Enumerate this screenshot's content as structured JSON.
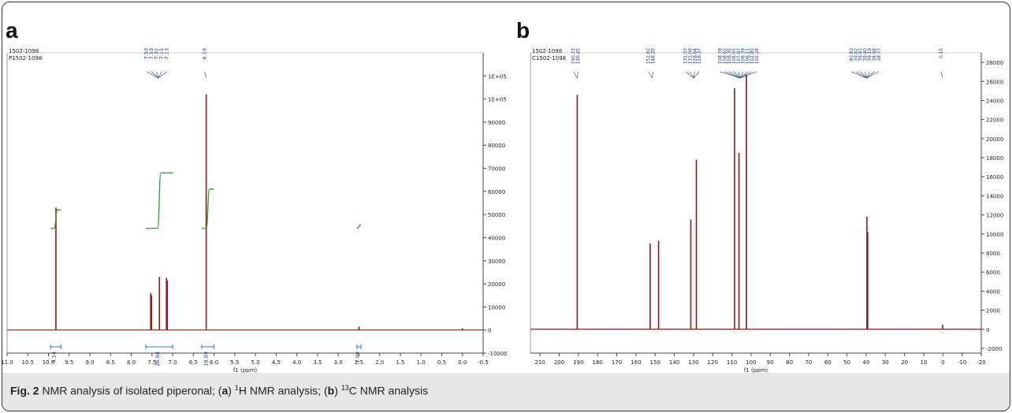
{
  "panels": {
    "a_letter": "a",
    "b_letter": "b"
  },
  "caption": {
    "fig_label": "Fig. 2",
    "part1": " NMR analysis of isolated piperonal; (",
    "a": "a",
    "part2": ") ",
    "sup_a": "1",
    "part3": "H NMR analysis; (",
    "b": "b",
    "part4": ") ",
    "sup_b": "13",
    "part5": "C NMR analysis"
  },
  "chart_data": [
    {
      "type": "line",
      "id": "a",
      "header_lines": [
        "1502-1098",
        "P1502-1098"
      ],
      "xlabel": "f1 (ppm)",
      "x_ticks": [
        "11.0",
        "10.5",
        "10.0",
        "9.5",
        "9.0",
        "8.5",
        "8.0",
        "7.5",
        "7.0",
        "6.5",
        "6.0",
        "5.5",
        "5.0",
        "4.5",
        "4.0",
        "3.5",
        "3.0",
        "2.5",
        "2.0",
        "1.5",
        "1.0",
        "0.5",
        "0.0",
        "-0.5"
      ],
      "xlim": [
        11.0,
        -0.5
      ],
      "y_ticks": [
        "-10000",
        "0",
        "10000",
        "20000",
        "30000",
        "40000",
        "50000",
        "60000",
        "70000",
        "80000",
        "90000",
        "1E+05",
        "1E+05"
      ],
      "ylim": [
        -10000,
        120000
      ],
      "peak_labels": [
        "7.53",
        "7.53",
        "7.32",
        "7.15",
        "7.13",
        "6.19"
      ],
      "peaks": [
        {
          "x": 9.82,
          "y": 53000
        },
        {
          "x": 7.53,
          "y": 16000
        },
        {
          "x": 7.51,
          "y": 15000
        },
        {
          "x": 7.32,
          "y": 23000
        },
        {
          "x": 7.15,
          "y": 22500
        },
        {
          "x": 7.13,
          "y": 21500
        },
        {
          "x": 6.19,
          "y": 102000
        },
        {
          "x": 2.5,
          "y": 1500
        },
        {
          "x": 0.0,
          "y": 800
        }
      ],
      "integrals": [
        {
          "from": 9.95,
          "to": 9.7,
          "y_start": 44000,
          "y_end": 52000,
          "label": "9.14"
        },
        {
          "from": 7.65,
          "to": 7.0,
          "y_start": 44000,
          "y_end": 68000,
          "label": "26.88"
        },
        {
          "from": 6.3,
          "to": 6.0,
          "y_start": 44000,
          "y_end": 61000,
          "label": "18.89"
        },
        {
          "from": 2.55,
          "to": 2.45,
          "y_start": 44000,
          "y_end": 45500,
          "label": "1.08"
        }
      ]
    },
    {
      "type": "line",
      "id": "b",
      "header_lines": [
        "1502-1098",
        "C1502-1098"
      ],
      "xlabel": "f1 (ppm)",
      "x_ticks": [
        "210",
        "200",
        "190",
        "180",
        "170",
        "160",
        "150",
        "140",
        "130",
        "120",
        "110",
        "100",
        "90",
        "80",
        "70",
        "60",
        "50",
        "40",
        "30",
        "20",
        "10",
        "0",
        "-10",
        "-20"
      ],
      "xlim": [
        215,
        -20
      ],
      "y_ticks": [
        "-2000",
        "0",
        "2000",
        "4000",
        "6000",
        "8000",
        "10000",
        "12000",
        "14000",
        "16000",
        "18000",
        "20000",
        "22000",
        "24000",
        "26000",
        "28000"
      ],
      "ylim": [
        -2500,
        29000
      ],
      "peak_labels": [
        "190.72",
        "190.45",
        "152.61",
        "148.20",
        "131.37",
        "131.08",
        "128.64",
        "128.37",
        "108.78",
        "108.62",
        "108.35",
        "108.05",
        "107.97",
        "106.39",
        "106.11",
        "102.80",
        "102.28",
        "40.83",
        "39.82",
        "39.61",
        "39.40",
        "39.19",
        "38.98",
        "38.77",
        "0.15"
      ],
      "peaks": [
        {
          "x": 190.6,
          "y": 24600
        },
        {
          "x": 152.6,
          "y": 9000
        },
        {
          "x": 148.2,
          "y": 9300
        },
        {
          "x": 131.4,
          "y": 11500
        },
        {
          "x": 128.5,
          "y": 17800
        },
        {
          "x": 108.6,
          "y": 25300
        },
        {
          "x": 106.3,
          "y": 18500
        },
        {
          "x": 102.4,
          "y": 26700
        },
        {
          "x": 39.6,
          "y": 11800
        },
        {
          "x": 39.2,
          "y": 10200
        },
        {
          "x": 0.15,
          "y": 500
        }
      ]
    }
  ]
}
